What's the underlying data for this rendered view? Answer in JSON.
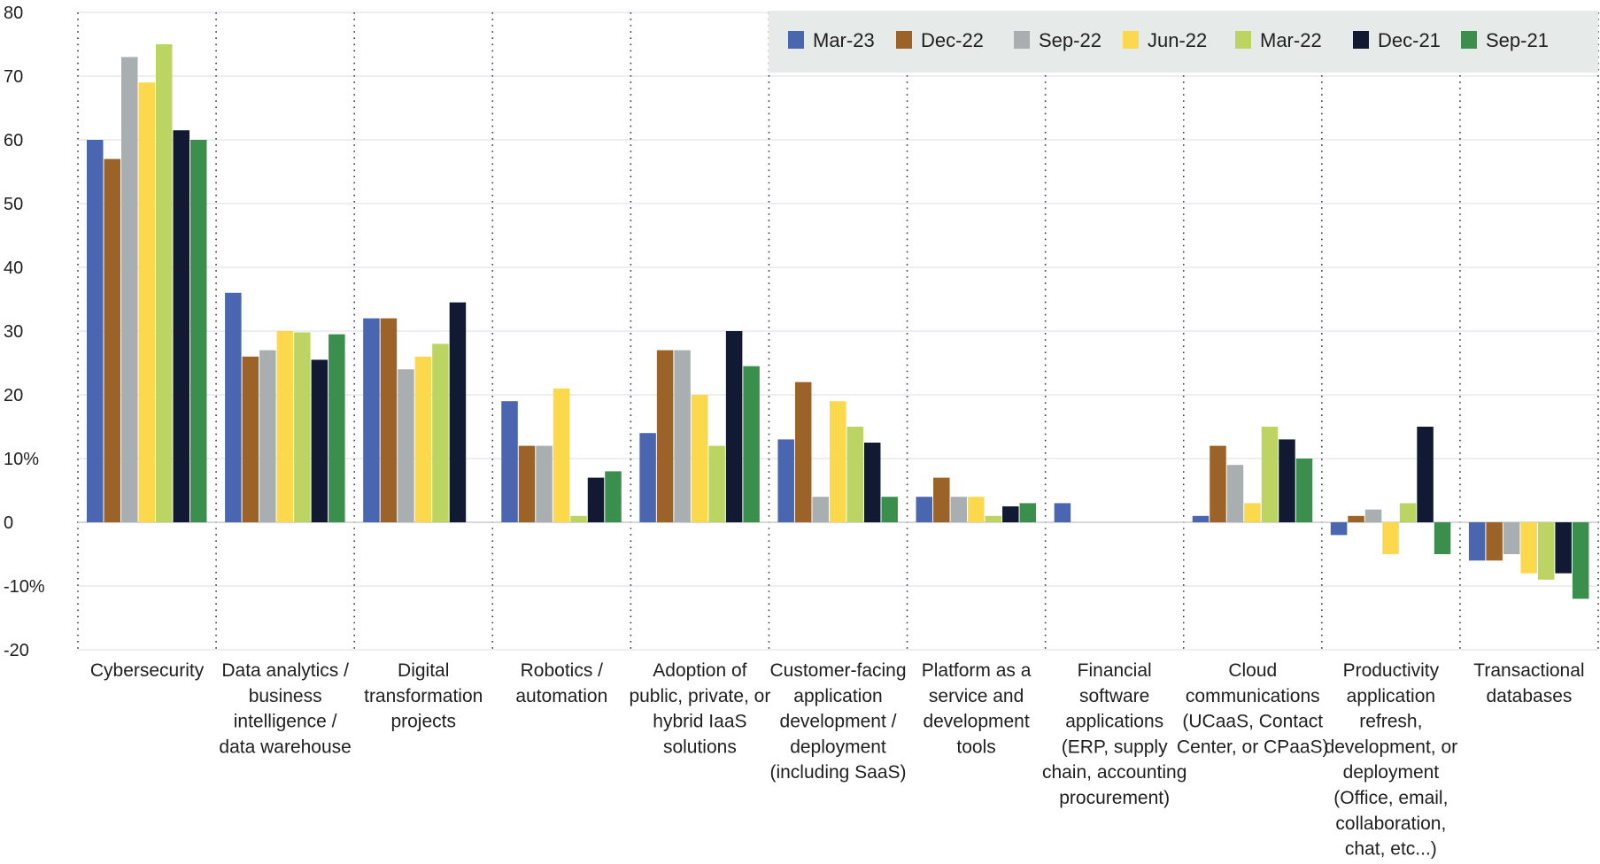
{
  "chart_data": {
    "type": "bar",
    "title": "",
    "xlabel": "",
    "ylabel": "",
    "ylim": [
      -20,
      80
    ],
    "grid": true,
    "legend_position": "top-right",
    "y_ticks": [
      "80",
      "70",
      "60",
      "50",
      "40",
      "30",
      "20",
      "10%",
      "0",
      "-10%",
      "-20"
    ],
    "y_tick_values": [
      80,
      70,
      60,
      50,
      40,
      30,
      20,
      10,
      0,
      -10,
      -20
    ],
    "categories": [
      "Cybersecurity",
      "Data analytics / business intelligence / data warehouse",
      "Digital transformation projects",
      "Robotics / automation",
      "Adoption of public, private, or hybrid IaaS solutions",
      "Customer-facing application development / deployment (including SaaS)",
      "Platform as a service and development tools",
      "Financial software applications (ERP, supply chain, accounting procurement)",
      "Cloud communications (UCaaS, Contact Center, or CPaaS)",
      "Productivity application refresh, development, or deployment (Office, email, collaboration, chat, etc...)",
      "Transactional databases"
    ],
    "category_label_lines": [
      [
        "Cybersecurity"
      ],
      [
        "Data analytics /",
        "business",
        "intelligence /",
        "data warehouse"
      ],
      [
        "Digital",
        "transformation",
        "projects"
      ],
      [
        "Robotics /",
        "automation"
      ],
      [
        "Adoption of",
        "public, private, or",
        "hybrid IaaS",
        "solutions"
      ],
      [
        "Customer-facing",
        "application",
        "development /",
        "deployment",
        "(including SaaS)"
      ],
      [
        "Platform as a",
        "service and",
        "development",
        "tools"
      ],
      [
        "Financial",
        "software",
        "applications",
        "(ERP, supply",
        "chain, accounting",
        "procurement)"
      ],
      [
        "Cloud",
        "communications",
        "(UCaaS, Contact",
        "Center, or CPaaS)"
      ],
      [
        "Productivity",
        "application",
        "refresh,",
        "development, or",
        "deployment",
        "(Office, email,",
        "collaboration,",
        "chat, etc...)"
      ],
      [
        "Transactional",
        "databases"
      ]
    ],
    "series": [
      {
        "name": "Mar-23",
        "color": "#4a66b0",
        "values": [
          60,
          36,
          32,
          19,
          14,
          13,
          4,
          3,
          1,
          -2,
          -6
        ]
      },
      {
        "name": "Dec-22",
        "color": "#9c6329",
        "values": [
          57,
          26,
          32,
          12,
          27,
          22,
          7,
          0,
          12,
          1,
          -6
        ]
      },
      {
        "name": "Sep-22",
        "color": "#a9aeb0",
        "values": [
          73,
          27,
          24,
          12,
          27,
          4,
          4,
          0,
          9,
          2,
          -5
        ]
      },
      {
        "name": "Jun-22",
        "color": "#fcd94c",
        "values": [
          69,
          30,
          26,
          21,
          20,
          19,
          4,
          0,
          3,
          -5,
          -8
        ]
      },
      {
        "name": "Mar-22",
        "color": "#bcd562",
        "values": [
          75,
          29.8,
          28,
          1,
          12,
          15,
          1,
          0,
          15,
          3,
          -9
        ]
      },
      {
        "name": "Dec-21",
        "color": "#121a33",
        "values": [
          61.5,
          25.5,
          34.5,
          7,
          30,
          12.5,
          2.5,
          0,
          13,
          15,
          -8
        ]
      },
      {
        "name": "Sep-21",
        "color": "#3b8f4c",
        "values": [
          60,
          29.5,
          0,
          8,
          24.5,
          4,
          3,
          0,
          10,
          -5,
          -12
        ]
      }
    ]
  }
}
